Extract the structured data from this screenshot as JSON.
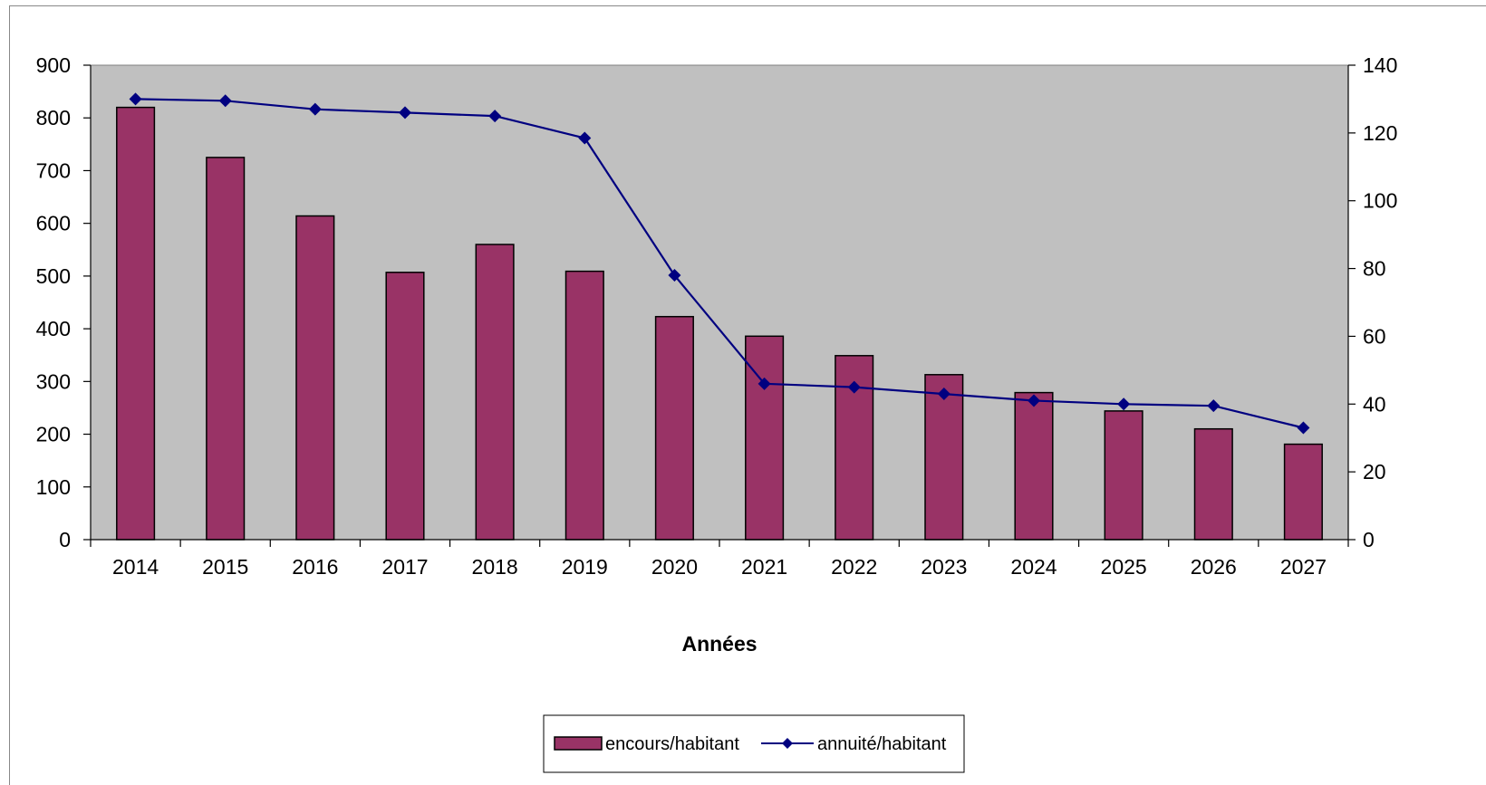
{
  "chart_data": {
    "type": "bar",
    "categories": [
      "2014",
      "2015",
      "2016",
      "2017",
      "2018",
      "2019",
      "2020",
      "2021",
      "2022",
      "2023",
      "2024",
      "2025",
      "2026",
      "2027"
    ],
    "series": [
      {
        "name": "encours/habitant",
        "type": "bar",
        "axis": "left",
        "color": "#993366",
        "values": [
          820,
          725,
          614,
          507,
          560,
          509,
          423,
          386,
          349,
          313,
          279,
          244,
          210,
          181
        ]
      },
      {
        "name": "annuité/habitant",
        "type": "line",
        "axis": "right",
        "color": "#000080",
        "values": [
          130,
          129.5,
          127,
          126,
          125,
          118.5,
          78,
          46,
          45,
          43,
          41,
          40,
          39.5,
          33
        ]
      }
    ],
    "xlabel": "Années",
    "ylabel": "",
    "ylim": [
      0,
      900
    ],
    "yticks": [
      "0",
      "100",
      "200",
      "300",
      "400",
      "500",
      "600",
      "700",
      "800",
      "900"
    ],
    "y2lim": [
      0,
      140
    ],
    "y2ticks": [
      "0",
      "20",
      "40",
      "60",
      "80",
      "100",
      "120",
      "140"
    ],
    "plot_background": "#c0c0c0",
    "grid": false,
    "legend_position": "bottom-center"
  }
}
